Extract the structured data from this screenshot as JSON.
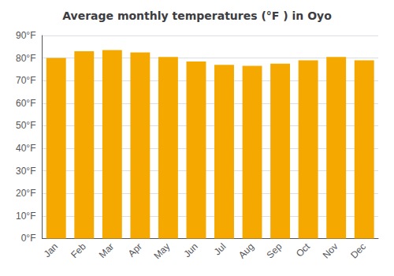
{
  "chart_data": {
    "type": "bar",
    "title": "Average monthly temperatures (°F ) in Oyo",
    "categories": [
      "Jan",
      "Feb",
      "Mar",
      "Apr",
      "May",
      "Jun",
      "Jul",
      "Aug",
      "Sep",
      "Oct",
      "Nov",
      "Dec"
    ],
    "values": [
      80.0,
      83.0,
      83.5,
      82.5,
      80.5,
      78.5,
      77.0,
      76.5,
      77.5,
      79.0,
      80.5,
      79.0
    ],
    "color": "#F5A800",
    "ylim": [
      0,
      90
    ],
    "yticks": [
      {
        "value": 0,
        "label": "0°F"
      },
      {
        "value": 10,
        "label": "10°F"
      },
      {
        "value": 20,
        "label": "20°F"
      },
      {
        "value": 30,
        "label": "30°F"
      },
      {
        "value": 40,
        "label": "40°F"
      },
      {
        "value": 50,
        "label": "50°F"
      },
      {
        "value": 60,
        "label": "60°F"
      },
      {
        "value": 70,
        "label": "70°F"
      },
      {
        "value": 80,
        "label": "80°F"
      },
      {
        "value": 90,
        "label": "90°F"
      }
    ],
    "grid": true
  }
}
